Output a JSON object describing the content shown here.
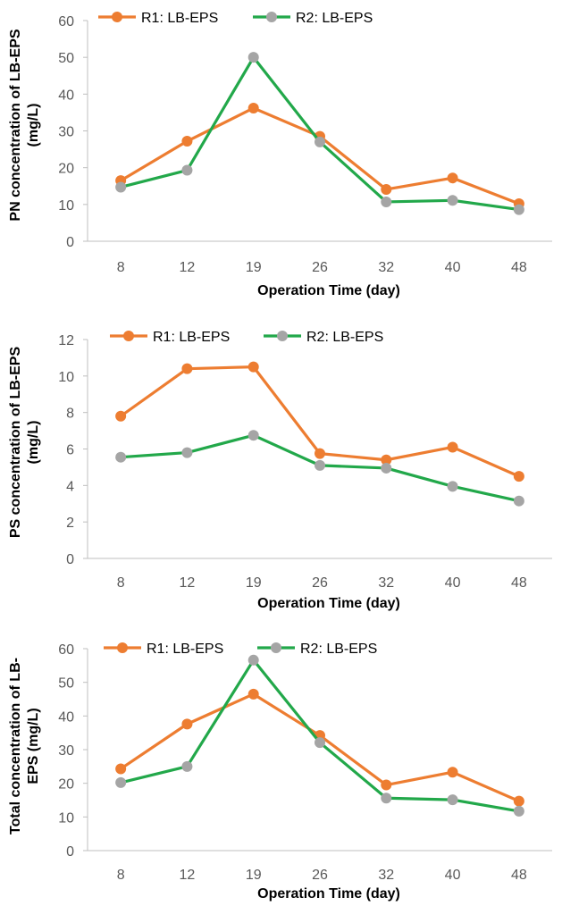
{
  "colors": {
    "r1": "#ED7D31",
    "r2_line": "#22A84A",
    "r2_marker": "#A5A5A5",
    "axis": "#BFBFBF"
  },
  "chart_data": [
    {
      "type": "line",
      "categories": [
        "8",
        "12",
        "19",
        "26",
        "32",
        "40",
        "48"
      ],
      "series": [
        {
          "name": "R1: LB-EPS",
          "values": [
            16.5,
            27.2,
            36.2,
            28.5,
            14.1,
            17.2,
            10.2
          ]
        },
        {
          "name": "R2: LB-EPS",
          "values": [
            14.7,
            19.3,
            50.0,
            27.0,
            10.7,
            11.1,
            8.6
          ]
        }
      ],
      "xlabel": "Operation Time (day)",
      "ylabel": [
        "PN concentration of LB-EPS",
        "(mg/L)"
      ],
      "ylim": [
        0,
        60
      ],
      "yticks": [
        0,
        10,
        20,
        30,
        40,
        50,
        60
      ],
      "grid": false,
      "legend_position": "top"
    },
    {
      "type": "line",
      "categories": [
        "8",
        "12",
        "19",
        "26",
        "32",
        "40",
        "48"
      ],
      "series": [
        {
          "name": "R1: LB-EPS",
          "values": [
            7.8,
            10.4,
            10.5,
            5.75,
            5.4,
            6.1,
            4.5
          ]
        },
        {
          "name": "R2: LB-EPS",
          "values": [
            5.55,
            5.8,
            6.75,
            5.1,
            4.95,
            3.95,
            3.15
          ]
        }
      ],
      "xlabel": "Operation Time (day)",
      "ylabel": [
        "PS concentration of LB-EPS",
        "(mg/L)"
      ],
      "ylim": [
        0,
        12
      ],
      "yticks": [
        0,
        2,
        4,
        6,
        8,
        10,
        12
      ],
      "grid": false,
      "legend_position": "top"
    },
    {
      "type": "line",
      "categories": [
        "8",
        "12",
        "19",
        "26",
        "32",
        "40",
        "48"
      ],
      "series": [
        {
          "name": "R1: LB-EPS",
          "values": [
            24.3,
            37.6,
            46.5,
            34.2,
            19.5,
            23.3,
            14.7
          ]
        },
        {
          "name": "R2: LB-EPS",
          "values": [
            20.2,
            25.0,
            56.6,
            32.1,
            15.6,
            15.1,
            11.7
          ]
        }
      ],
      "xlabel": "Operation Time (day)",
      "ylabel": [
        "Total concentration of LB-",
        "EPS (mg/L)"
      ],
      "ylim": [
        0,
        60
      ],
      "yticks": [
        0,
        10,
        20,
        30,
        40,
        50,
        60
      ],
      "grid": false,
      "legend_position": "top"
    }
  ]
}
